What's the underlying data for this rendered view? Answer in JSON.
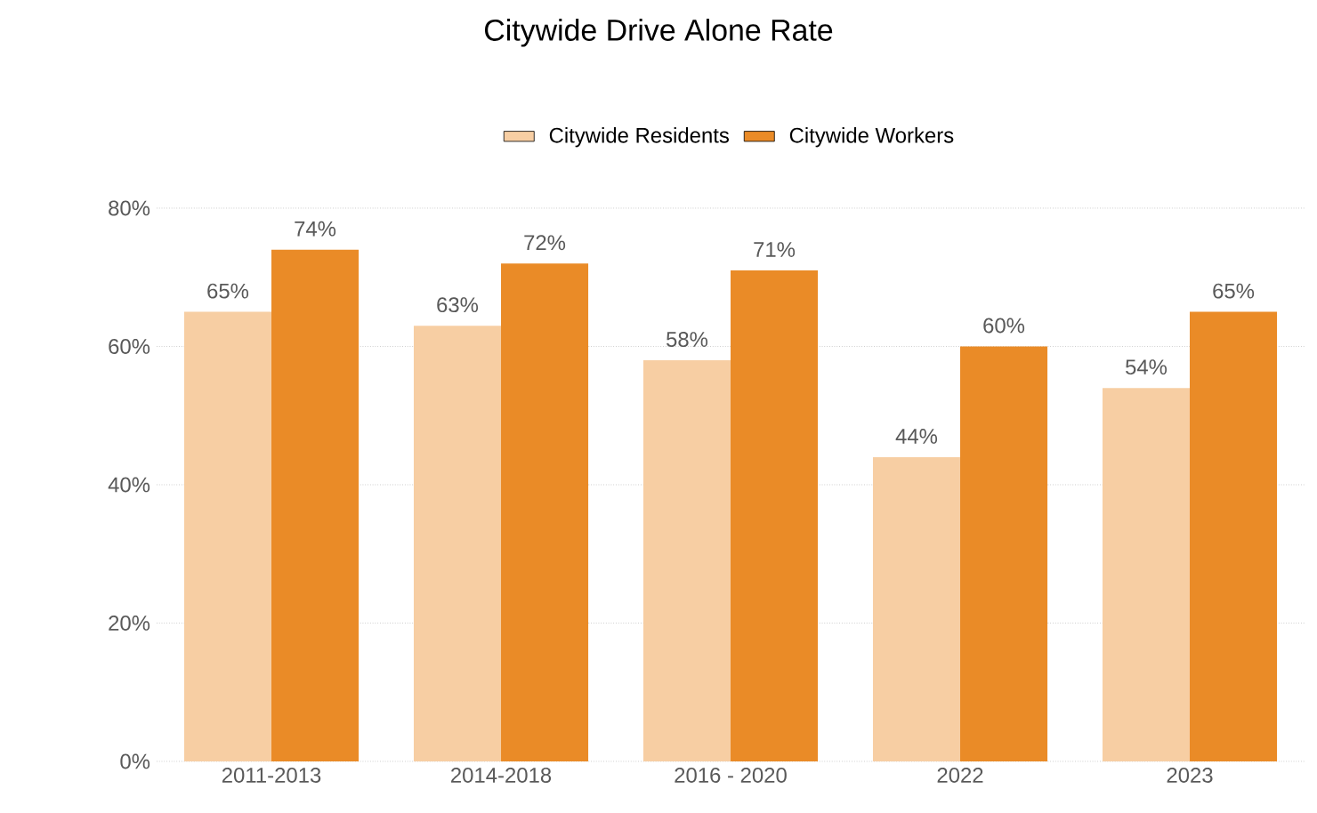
{
  "chart_data": {
    "type": "bar",
    "title": "Citywide Drive Alone Rate",
    "categories": [
      "2011-2013",
      "2014-2018",
      "2016 - 2020",
      "2022",
      "2023"
    ],
    "series": [
      {
        "name": "Citywide Residents",
        "color": "#f7cea3",
        "values": [
          65,
          63,
          58,
          44,
          54
        ],
        "value_labels": [
          "65%",
          "63%",
          "58%",
          "44%",
          "54%"
        ]
      },
      {
        "name": "Citywide Workers",
        "color": "#ea8b27",
        "values": [
          74,
          72,
          71,
          60,
          65
        ],
        "value_labels": [
          "74%",
          "72%",
          "71%",
          "60%",
          "65%"
        ]
      }
    ],
    "ylim": [
      0,
      80
    ],
    "yticks": [
      {
        "value": 0,
        "label": "0%"
      },
      {
        "value": 20,
        "label": "20%"
      },
      {
        "value": 40,
        "label": "40%"
      },
      {
        "value": 60,
        "label": "60%"
      },
      {
        "value": 80,
        "label": "80%"
      }
    ],
    "grid": "y",
    "legend": "top"
  }
}
